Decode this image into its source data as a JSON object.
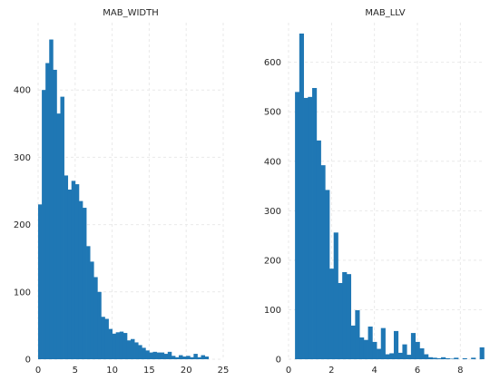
{
  "chart_data": [
    {
      "type": "bar",
      "title": "MAB_WIDTH",
      "bar_color": "#1f77b4",
      "grid": true,
      "xlim": [
        0,
        25
      ],
      "ylim": [
        0,
        500
      ],
      "x_ticks": [
        0,
        5,
        10,
        15,
        20,
        25
      ],
      "y_ticks": [
        0,
        100,
        200,
        300,
        400
      ],
      "bins_start": 0,
      "bin_width": 0.5,
      "values": [
        230,
        400,
        440,
        475,
        430,
        365,
        390,
        273,
        252,
        265,
        260,
        235,
        225,
        168,
        145,
        122,
        100,
        63,
        60,
        45,
        38,
        40,
        41,
        39,
        28,
        30,
        25,
        21,
        17,
        13,
        10,
        11,
        10,
        10,
        8,
        11,
        5,
        3,
        6,
        4,
        5,
        3,
        8,
        3,
        6,
        4
      ]
    },
    {
      "type": "bar",
      "title": "MAB_LLV",
      "bar_color": "#1f77b4",
      "grid": true,
      "xlim": [
        0,
        9
      ],
      "ylim": [
        0,
        680
      ],
      "x_ticks": [
        0,
        2,
        4,
        6,
        8
      ],
      "y_ticks": [
        0,
        100,
        200,
        300,
        400,
        500,
        600
      ],
      "bins_start": 0.3,
      "bin_width": 0.2,
      "values": [
        540,
        658,
        528,
        530,
        548,
        442,
        392,
        342,
        183,
        256,
        154,
        176,
        172,
        68,
        99,
        44,
        39,
        66,
        35,
        21,
        63,
        10,
        12,
        57,
        13,
        30,
        9,
        53,
        35,
        22,
        10,
        4,
        3,
        2,
        4,
        2,
        1,
        3,
        0,
        2,
        0,
        3,
        0,
        24
      ]
    }
  ]
}
